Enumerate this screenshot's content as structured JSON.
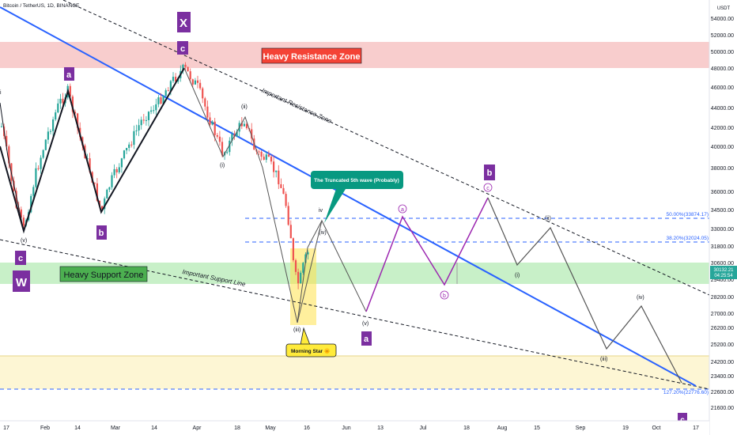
{
  "header": {
    "title": "Bitcoin / TetherUS, 1D, BINANCE"
  },
  "price_axis": {
    "currency": "USDT",
    "labels": [
      "54000.00",
      "52000.00",
      "50000.00",
      "48000.00",
      "46000.00",
      "44000.00",
      "42000.00",
      "40000.00",
      "38000.00",
      "36000.00",
      "34500.00",
      "33000.00",
      "31800.00",
      "30600.00",
      "29400.00",
      "28200.00",
      "27000.00",
      "26200.00",
      "25200.00",
      "24200.00",
      "23400.00",
      "22600.00",
      "21600.00"
    ],
    "current_price": "30132.21",
    "countdown": "04:25:54"
  },
  "time_axis": {
    "labels": [
      "17",
      "Feb",
      "14",
      "Mar",
      "14",
      "Apr",
      "18",
      "May",
      "16",
      "Jun",
      "13",
      "Jul",
      "18",
      "Aug",
      "15",
      "Sep",
      "19",
      "Oct",
      "17"
    ]
  },
  "zones": {
    "resistance": "Heavy Resistance Zone",
    "support": "Heavy Support Zone"
  },
  "trendline_labels": {
    "resistance": "Important Resistance Zone",
    "support": "Important Support Line"
  },
  "fib_levels": [
    {
      "text": "50.00%(33874.17)"
    },
    {
      "text": "38.20%(32024.05)"
    },
    {
      "text": "127.20%(22776.60)"
    }
  ],
  "callouts": {
    "truncated": "The Truncated 5th wave (Probably)",
    "morning_star": "Morning Star 🌞"
  },
  "wave_badges": {
    "x": "X",
    "w": "W",
    "c_top": "c",
    "a_top": "a",
    "b_left": "b",
    "c_left": "c",
    "b_right": "b",
    "a_right": "a",
    "c_bottom": "c"
  },
  "wave_labels": {
    "i_left": "i",
    "v_left": "(v)",
    "ii": "(ii)",
    "i_mid": "(i)",
    "iii": "(iii)",
    "iv_small": "iv",
    "iv_paren": "(iv)",
    "v_mid": "(v)",
    "circ_a": "a",
    "circ_b": "b",
    "circ_c": "c",
    "i_right": "(i)",
    "ii_right": "(ii)",
    "iii_right": "(iii)",
    "iv_right": "(iv)"
  },
  "colors": {
    "purple_badge": "#7b2fa0",
    "zone_red": "#f8c9c9",
    "zone_green": "#c9f0c9",
    "zone_yellow": "#fdf6d4",
    "blue_line": "#2962ff",
    "candle_up": "#26a69a",
    "candle_down": "#ef5350",
    "projection_purple": "#9c27b0"
  }
}
